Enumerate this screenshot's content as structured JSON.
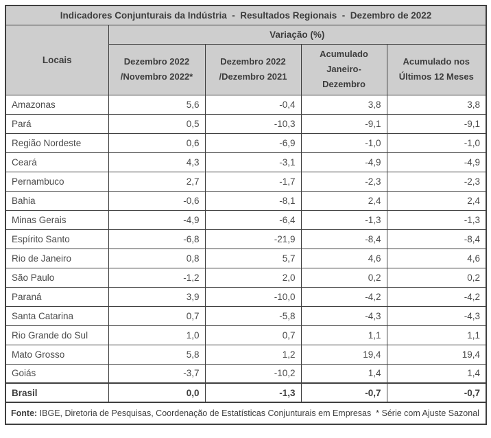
{
  "ui": {
    "title": "Indicadores Conjunturais da Indústria  -  Resultados Regionais  -  Dezembro de 2022",
    "header": {
      "locais": "Locais",
      "variacao": "Variação (%)",
      "columns": [
        "Dezembro 2022\n/Novembro 2022*",
        "Dezembro 2022\n/Dezembro 2021",
        "Acumulado\nJaneiro-\nDezembro",
        "Acumulado nos\nÚltimos 12 Meses"
      ]
    },
    "footer": {
      "label": "Fonte:",
      "text": " IBGE, Diretoria de Pesquisas, Coordenação de Estatísticas Conjunturais em Empresas  * Série com Ajuste Sazonal"
    }
  },
  "colors": {
    "header_bg": "#cecece",
    "border": "#3f3f3f",
    "heading_text": "#3d3d3d",
    "body_text": "#4a4a4a",
    "row_bg": "#ffffff"
  },
  "chart_data": {
    "type": "table",
    "title": "Indicadores Conjunturais da Indústria - Resultados Regionais - Dezembro de 2022",
    "column_group": "Variação (%)",
    "columns": [
      "Locais",
      "Dezembro 2022/Novembro 2022*",
      "Dezembro 2022/Dezembro 2021",
      "Acumulado Janeiro-Dezembro",
      "Acumulado nos Últimos 12 Meses"
    ],
    "rows": [
      {
        "local": "Amazonas",
        "values": [
          5.6,
          -0.4,
          3.8,
          3.8
        ]
      },
      {
        "local": "Pará",
        "values": [
          0.5,
          -10.3,
          -9.1,
          -9.1
        ]
      },
      {
        "local": "Região Nordeste",
        "values": [
          0.6,
          -6.9,
          -1.0,
          -1.0
        ]
      },
      {
        "local": "Ceará",
        "values": [
          4.3,
          -3.1,
          -4.9,
          -4.9
        ]
      },
      {
        "local": "Pernambuco",
        "values": [
          2.7,
          -1.7,
          -2.3,
          -2.3
        ]
      },
      {
        "local": "Bahia",
        "values": [
          -0.6,
          -8.1,
          2.4,
          2.4
        ]
      },
      {
        "local": "Minas Gerais",
        "values": [
          -4.9,
          -6.4,
          -1.3,
          -1.3
        ]
      },
      {
        "local": "Espírito Santo",
        "values": [
          -6.8,
          -21.9,
          -8.4,
          -8.4
        ]
      },
      {
        "local": "Rio de Janeiro",
        "values": [
          0.8,
          5.7,
          4.6,
          4.6
        ]
      },
      {
        "local": "São Paulo",
        "values": [
          -1.2,
          2.0,
          0.2,
          0.2
        ]
      },
      {
        "local": "Paraná",
        "values": [
          3.9,
          -10.0,
          -4.2,
          -4.2
        ]
      },
      {
        "local": "Santa Catarina",
        "values": [
          0.7,
          -5.8,
          -4.3,
          -4.3
        ]
      },
      {
        "local": "Rio Grande do Sul",
        "values": [
          1.0,
          0.7,
          1.1,
          1.1
        ]
      },
      {
        "local": "Mato Grosso",
        "values": [
          5.8,
          1.2,
          19.4,
          19.4
        ]
      },
      {
        "local": "Goiás",
        "values": [
          -3.7,
          -10.2,
          1.4,
          1.4
        ]
      },
      {
        "local": "Brasil",
        "values": [
          0.0,
          -1.3,
          -0.7,
          -0.7
        ],
        "bold": true
      }
    ],
    "source": "Fonte: IBGE, Diretoria de Pesquisas, Coordenação de Estatísticas Conjunturais em Empresas * Série com Ajuste Sazonal",
    "decimal_separator": ",",
    "legend_position": "none",
    "grid": true
  }
}
